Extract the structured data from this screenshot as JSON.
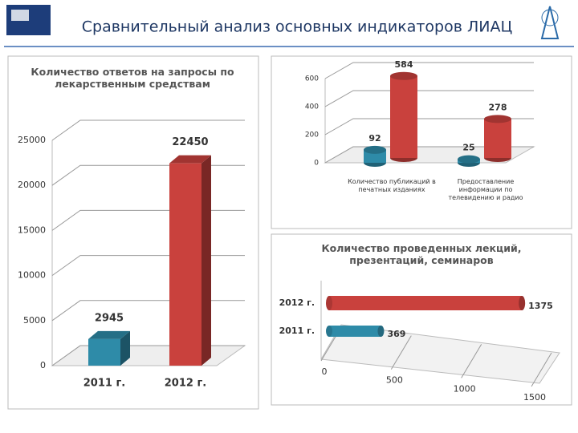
{
  "title": "Сравнительный анализ основных индикаторов ЛИАЦ",
  "chart_data": [
    {
      "type": "bar",
      "title": "Количество ответов на запросы по лекарственным средствам",
      "categories": [
        "2011 г.",
        "2012 г."
      ],
      "values": [
        2945,
        22450
      ],
      "colors": [
        "#2e8ba8",
        "#c9413d"
      ],
      "ylim": [
        0,
        25000
      ],
      "yticks": [
        0,
        5000,
        10000,
        15000,
        20000,
        25000
      ],
      "grid": true
    },
    {
      "type": "bar",
      "categories": [
        "Количество публикаций в печатных изданиях",
        "Предоставление информации по телевидению и радио"
      ],
      "series": [
        {
          "color": "#2e8ba8",
          "values": [
            92,
            25
          ]
        },
        {
          "color": "#c9413d",
          "values": [
            584,
            278
          ]
        }
      ],
      "ylim": [
        0,
        600
      ],
      "yticks": [
        0,
        200,
        400,
        600
      ],
      "grid": true
    },
    {
      "type": "barh",
      "title": "Количество проведенных лекций, презентаций, семинаров",
      "categories": [
        "2011 г.",
        "2012 г."
      ],
      "values": [
        369,
        1375
      ],
      "colors": [
        "#2e8ba8",
        "#c9413d"
      ],
      "xlim": [
        0,
        1500
      ],
      "xticks": [
        0,
        500,
        1000,
        1500
      ],
      "grid": true
    }
  ]
}
